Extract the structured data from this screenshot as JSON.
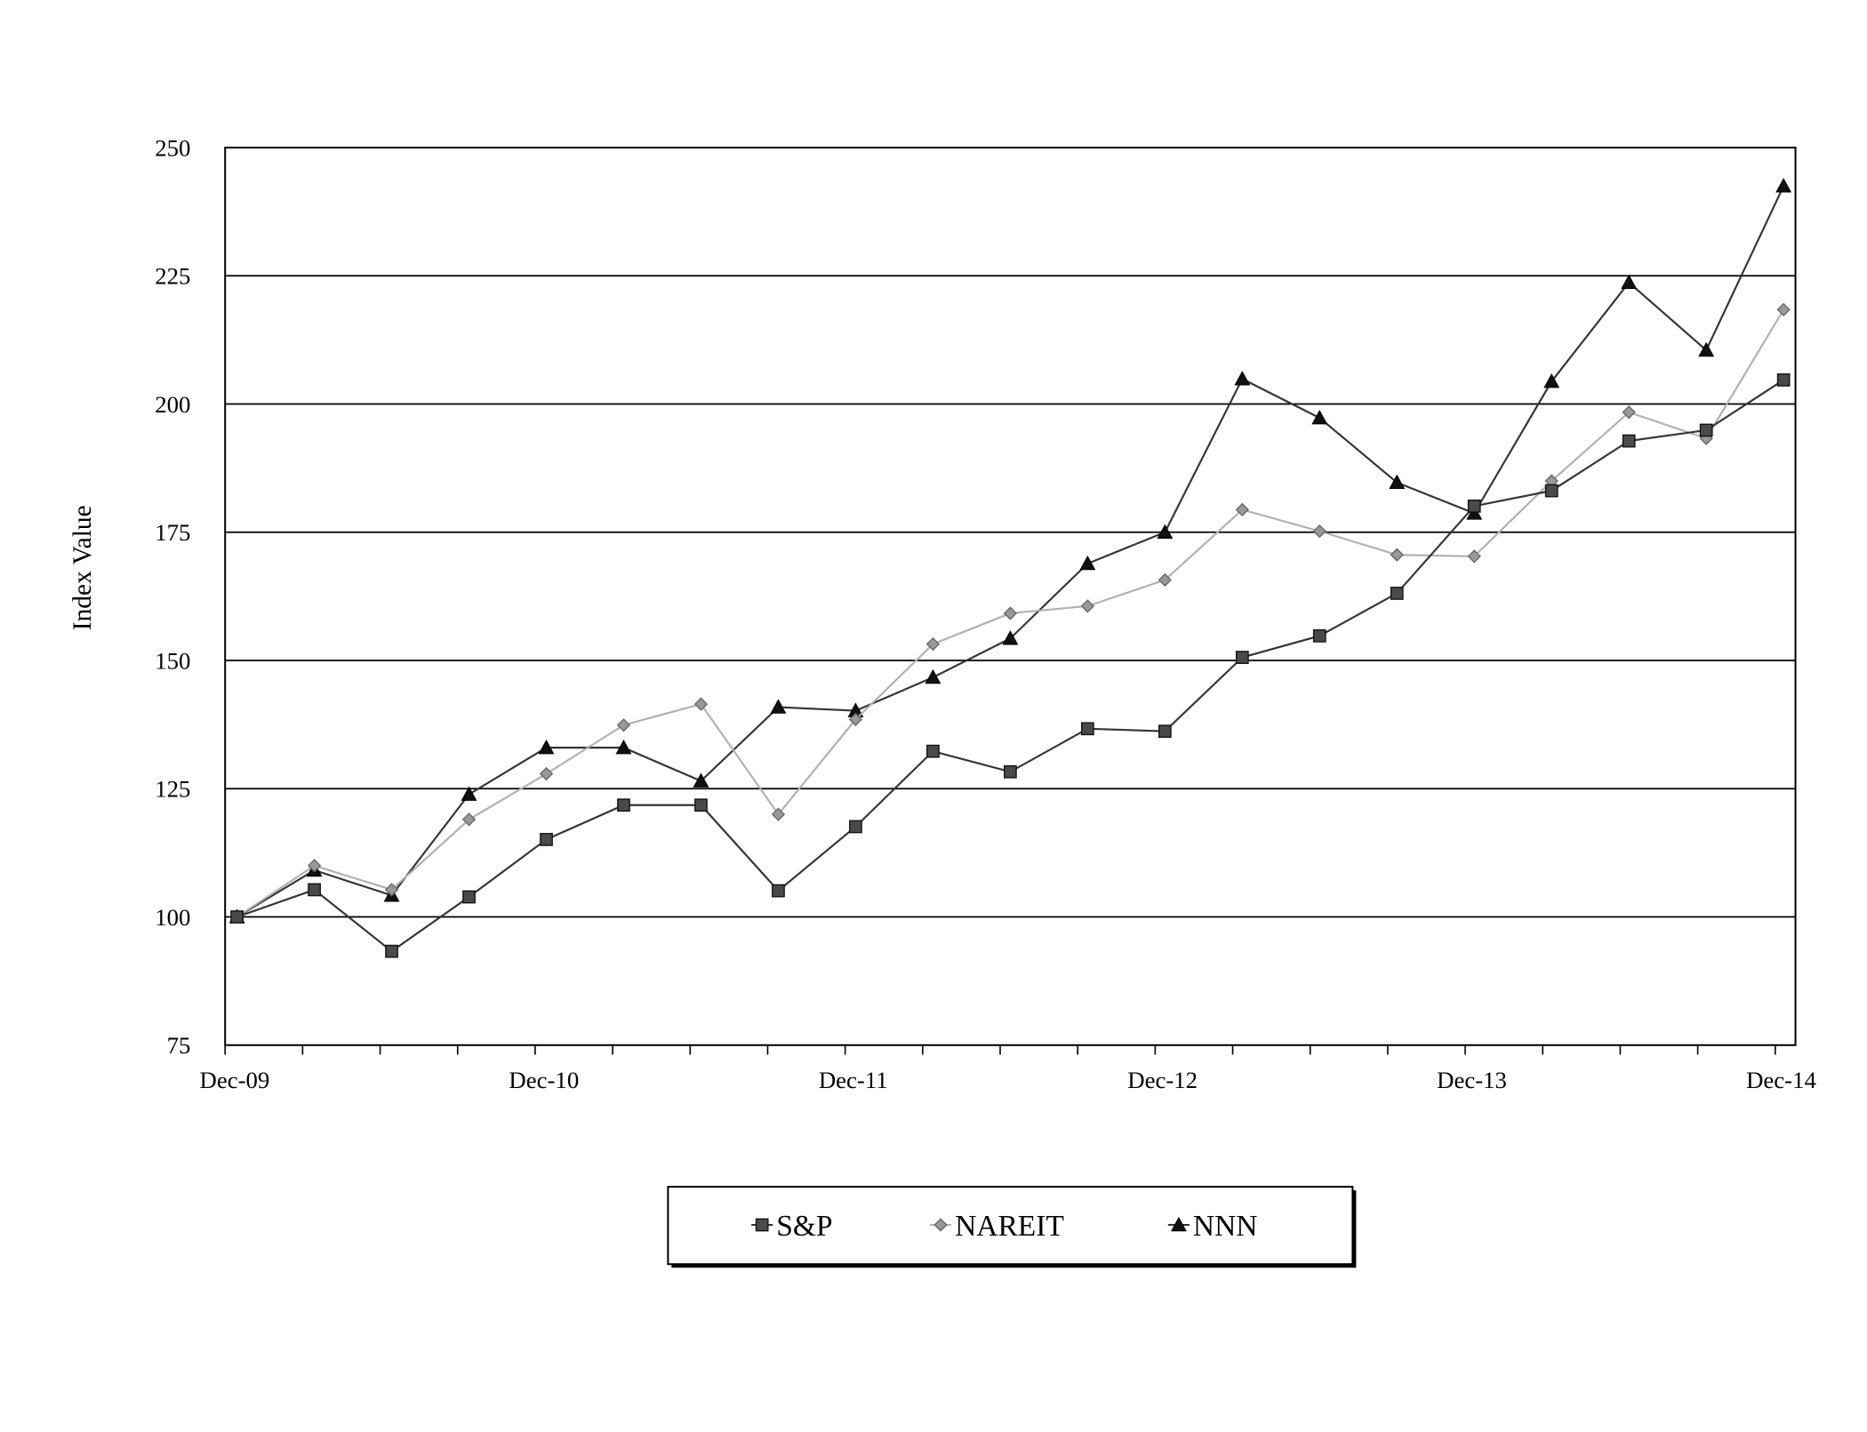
{
  "chart_data": {
    "type": "line",
    "title": "",
    "xlabel": "",
    "ylabel": "Index Value",
    "ylim": [
      75,
      250
    ],
    "yticks": [
      "75",
      "100",
      "125",
      "150",
      "175",
      "200",
      "225",
      "250"
    ],
    "x_tick_labels": [
      "Dec-09",
      "Dec-10",
      "Dec-11",
      "Dec-12",
      "Dec-13",
      "Dec-14"
    ],
    "x_points": 21,
    "grid": true,
    "legend_position": "bottom",
    "series": [
      {
        "name": "S&P",
        "marker": "square",
        "color": "#333333",
        "fill": "#4a4a4a",
        "values": [
          100,
          105.3,
          93.3,
          103.9,
          115.1,
          121.8,
          121.8,
          105.1,
          117.6,
          132.3,
          128.3,
          136.7,
          136.2,
          150.6,
          154.8,
          163.1,
          180.1,
          183.1,
          192.8,
          194.9,
          204.7
        ]
      },
      {
        "name": "NAREIT",
        "marker": "diamond",
        "color": "#b0b0b0",
        "fill": "#999999",
        "values": [
          100,
          110.0,
          105.3,
          119.0,
          127.9,
          137.4,
          141.5,
          120.0,
          138.5,
          153.2,
          159.2,
          160.6,
          165.7,
          179.4,
          175.2,
          170.6,
          170.3,
          185.0,
          198.4,
          193.3,
          218.4
        ]
      },
      {
        "name": "NNN",
        "marker": "triangle",
        "color": "#333333",
        "fill": "#111111",
        "values": [
          100,
          109.1,
          104.2,
          123.9,
          133.0,
          133.0,
          126.5,
          140.9,
          140.2,
          146.7,
          154.3,
          168.9,
          175.0,
          204.9,
          197.3,
          184.7,
          178.7,
          204.4,
          223.7,
          210.5,
          242.5
        ]
      }
    ]
  }
}
